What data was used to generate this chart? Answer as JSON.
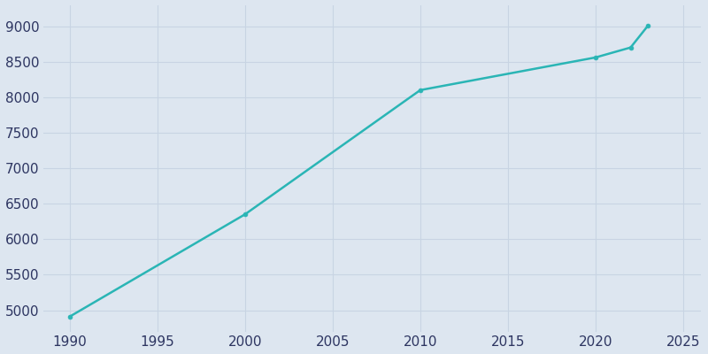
{
  "years": [
    1990,
    2000,
    2010,
    2020,
    2022,
    2023
  ],
  "population": [
    4910,
    6350,
    8100,
    8560,
    8700,
    9010
  ],
  "line_color": "#2ab5b5",
  "marker": "o",
  "marker_size": 3.5,
  "line_width": 1.8,
  "plot_bg_color": "#dde6f0",
  "fig_bg_color": "#dde6f0",
  "xlim": [
    1988.5,
    2026
  ],
  "ylim": [
    4700,
    9300
  ],
  "xticks": [
    1990,
    1995,
    2000,
    2005,
    2010,
    2015,
    2020,
    2025
  ],
  "yticks": [
    5000,
    5500,
    6000,
    6500,
    7000,
    7500,
    8000,
    8500,
    9000
  ],
  "tick_color": "#2d3561",
  "grid_color": "#c8d4e3",
  "tick_label_size": 11
}
